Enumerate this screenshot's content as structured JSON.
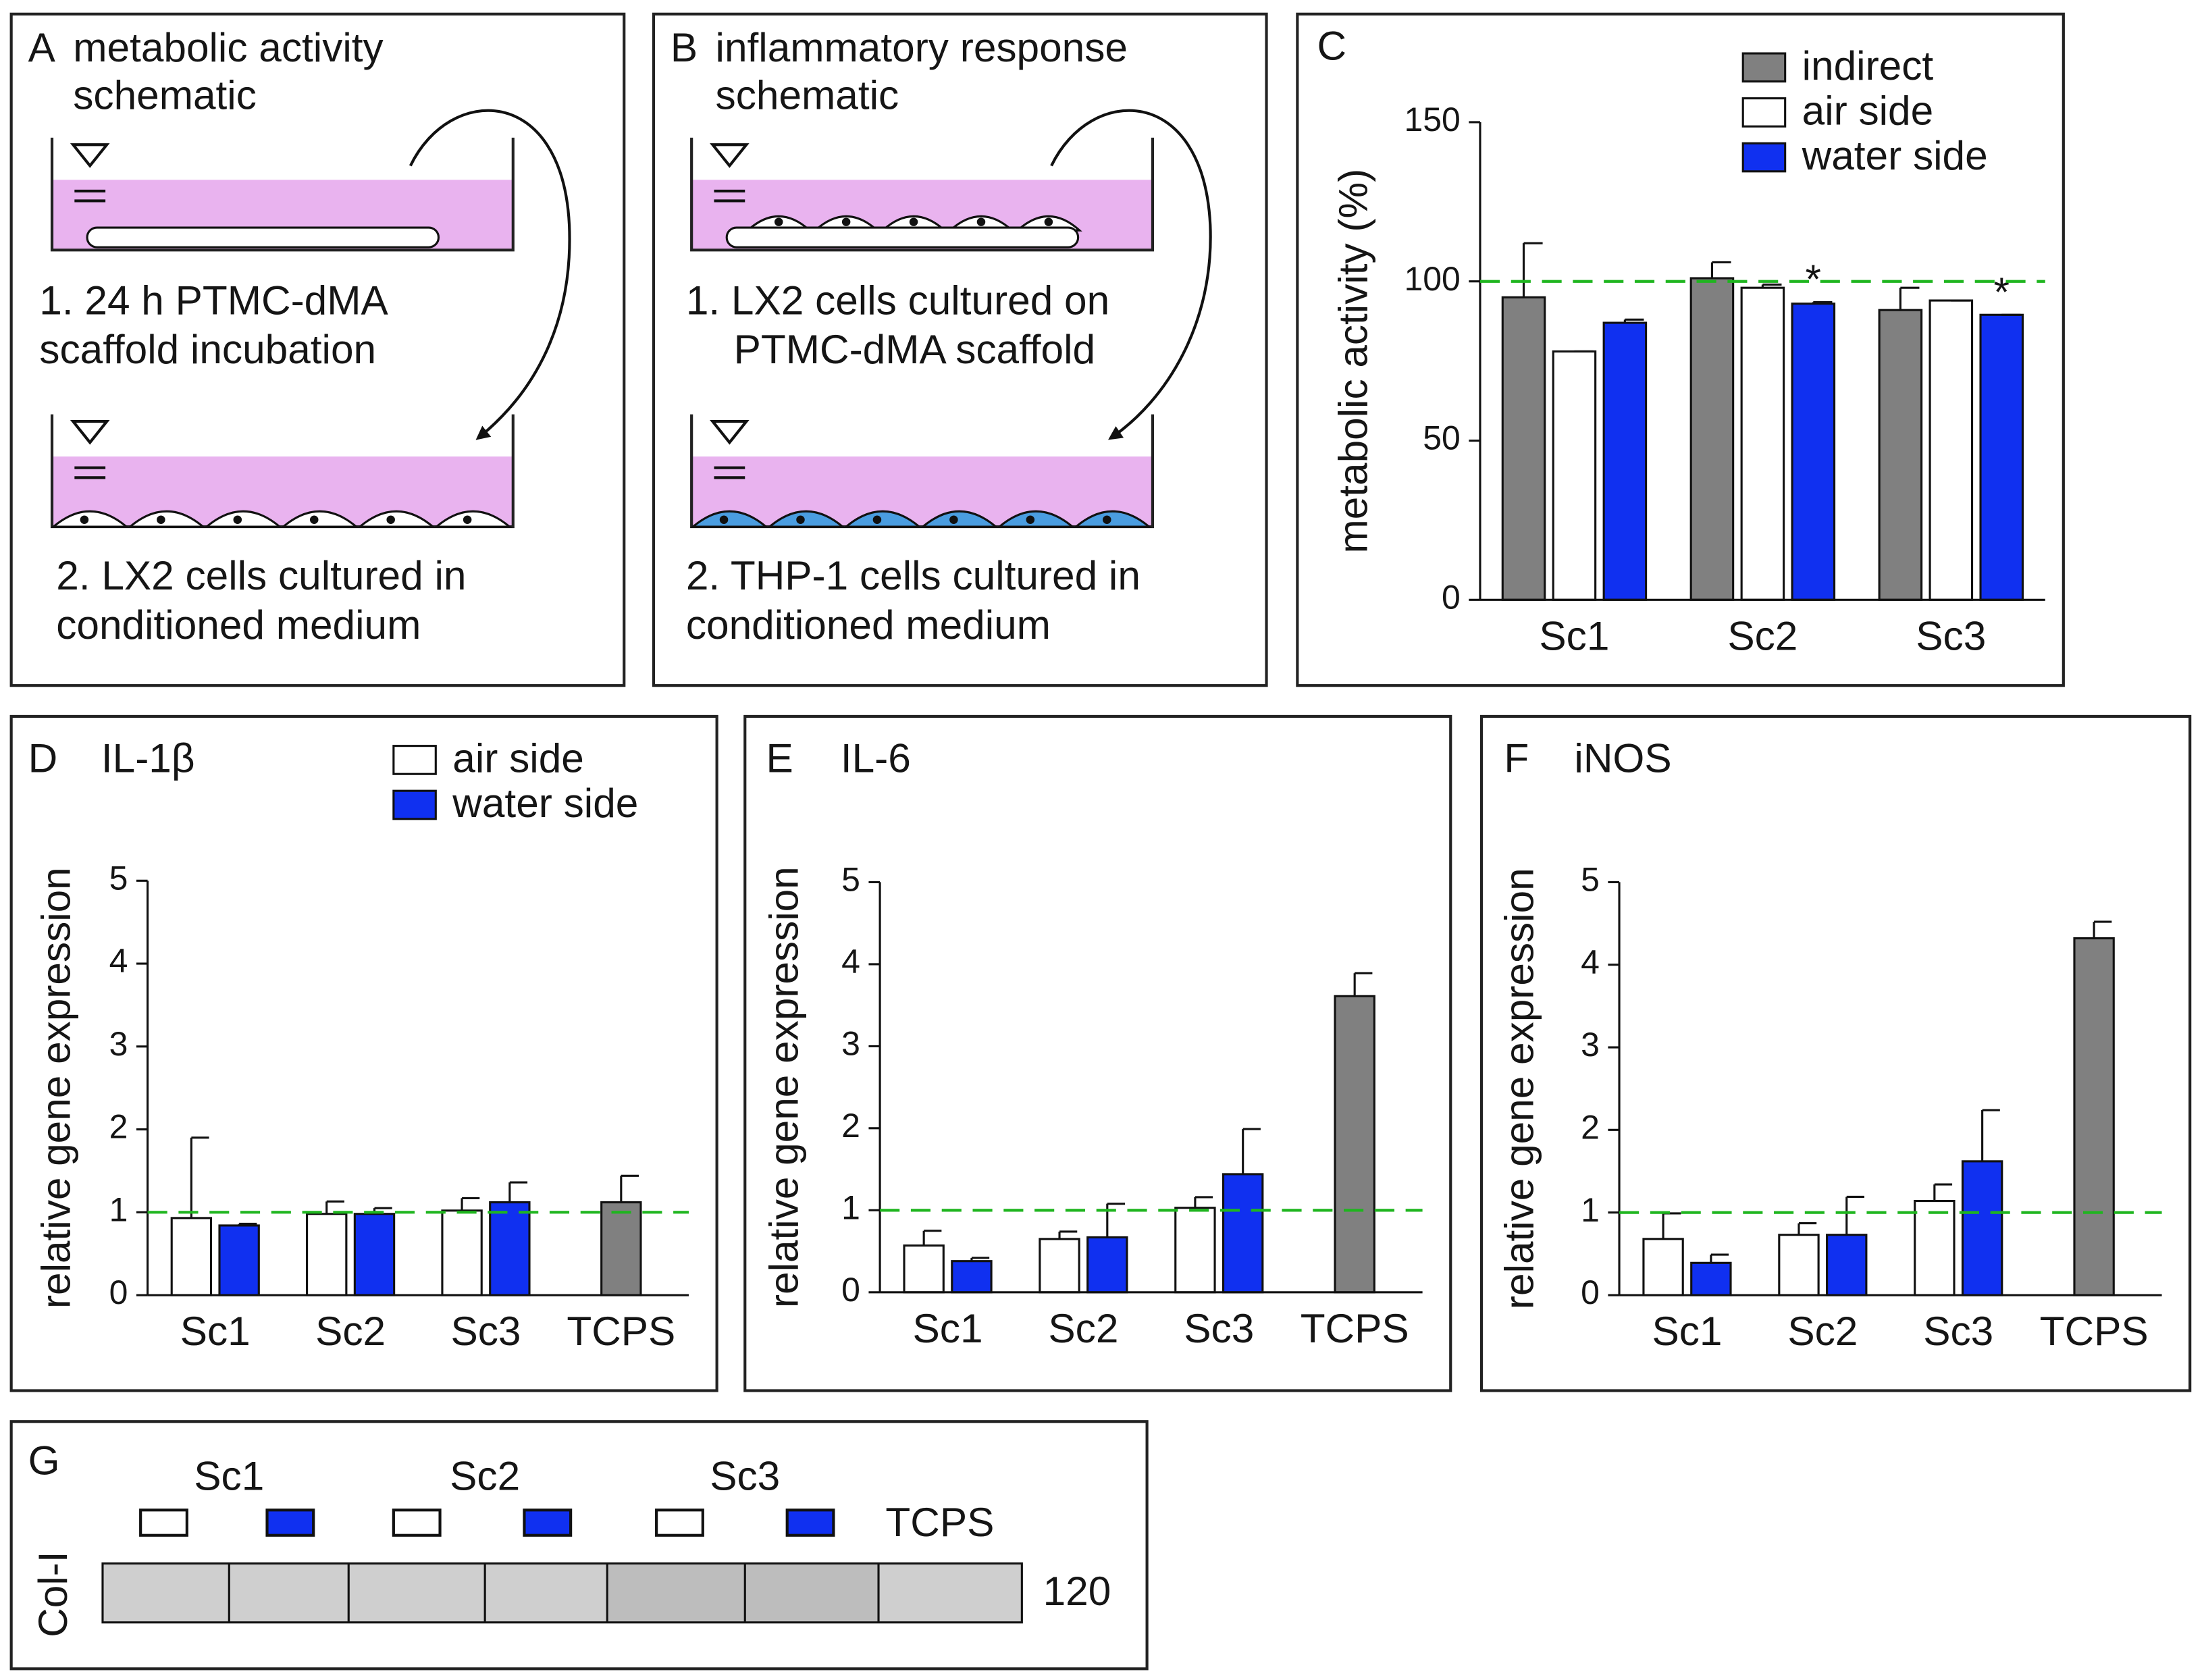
{
  "panels": {
    "A": {
      "label": "A",
      "title": [
        "metabolic activity",
        "schematic"
      ],
      "step1": [
        "1. 24 h PTMC-dMA",
        "scaffold incubation"
      ],
      "step2": [
        "2. LX2 cells cultured in",
        "conditioned medium"
      ]
    },
    "B": {
      "label": "B",
      "title": [
        "inflammatory response",
        "schematic"
      ],
      "step1": [
        "1. LX2 cells cultured on",
        "PTMC-dMA scaffold"
      ],
      "step2": [
        "2. THP-1 cells cultured in",
        "conditioned medium"
      ]
    },
    "G": {
      "label": "G",
      "row_label": "Col-I",
      "lanes": [
        "Sc1",
        "Sc2",
        "Sc3"
      ],
      "control": "TCPS",
      "marker": "120"
    }
  },
  "chart_data": [
    {
      "type": "bar",
      "label": "C",
      "ylabel": "metabolic activity (%)",
      "categories": [
        "Sc1",
        "Sc2",
        "Sc3"
      ],
      "series": [
        {
          "name": "indirect",
          "color": "#808080",
          "values": [
            95,
            101,
            91
          ],
          "errors": [
            17,
            5,
            7
          ]
        },
        {
          "name": "air side",
          "color": "#ffffff",
          "values": [
            78,
            98,
            94
          ],
          "errors": [
            0,
            1,
            0
          ]
        },
        {
          "name": "water side",
          "color": "#1030f0",
          "values": [
            87,
            93,
            89.5
          ],
          "errors": [
            1,
            0.5,
            0
          ],
          "markers": [
            null,
            "*",
            "*"
          ]
        }
      ],
      "ylim": [
        0,
        150
      ],
      "yticks": [
        0,
        50,
        100,
        150
      ],
      "reference_line": 100,
      "legend": "upper right"
    },
    {
      "type": "bar",
      "label": "D",
      "title": "IL-1β",
      "ylabel": "relative gene expression",
      "categories": [
        "Sc1",
        "Sc2",
        "Sc3",
        "TCPS"
      ],
      "series": [
        {
          "name": "air side",
          "color": "#ffffff",
          "values": [
            0.93,
            0.98,
            1.02,
            null
          ],
          "errors": [
            0.97,
            0.15,
            0.15,
            null
          ]
        },
        {
          "name": "water side",
          "color": "#1030f0",
          "values": [
            0.84,
            0.98,
            1.12,
            null
          ],
          "errors": [
            0.02,
            0.07,
            0.24,
            null
          ]
        },
        {
          "color": "#808080",
          "values": [
            null,
            null,
            null,
            1.12
          ],
          "errors": [
            null,
            null,
            null,
            0.32
          ]
        }
      ],
      "ylim": [
        0,
        5
      ],
      "yticks": [
        0,
        1,
        2,
        3,
        4,
        5
      ],
      "reference_line": 1,
      "legend": "upper right"
    },
    {
      "type": "bar",
      "label": "E",
      "title": "IL-6",
      "ylabel": "relative gene expression",
      "categories": [
        "Sc1",
        "Sc2",
        "Sc3",
        "TCPS"
      ],
      "series": [
        {
          "color": "#ffffff",
          "values": [
            0.57,
            0.65,
            1.03,
            null
          ],
          "errors": [
            0.18,
            0.09,
            0.13,
            null
          ]
        },
        {
          "color": "#1030f0",
          "values": [
            0.38,
            0.67,
            1.44,
            null
          ],
          "errors": [
            0.04,
            0.41,
            0.55,
            null
          ]
        },
        {
          "color": "#808080",
          "values": [
            null,
            null,
            null,
            3.61
          ],
          "errors": [
            null,
            null,
            null,
            0.28
          ]
        }
      ],
      "ylim": [
        0,
        5
      ],
      "yticks": [
        0,
        1,
        2,
        3,
        4,
        5
      ],
      "reference_line": 1
    },
    {
      "type": "bar",
      "label": "F",
      "title": "iNOS",
      "ylabel": "relative gene expression",
      "categories": [
        "Sc1",
        "Sc2",
        "Sc3",
        "TCPS"
      ],
      "series": [
        {
          "color": "#ffffff",
          "values": [
            0.68,
            0.73,
            1.14,
            null
          ],
          "errors": [
            0.31,
            0.14,
            0.2,
            null
          ]
        },
        {
          "color": "#1030f0",
          "values": [
            0.39,
            0.73,
            1.62,
            null
          ],
          "errors": [
            0.1,
            0.46,
            0.62,
            null
          ]
        },
        {
          "color": "#808080",
          "values": [
            null,
            null,
            null,
            4.32
          ],
          "errors": [
            null,
            null,
            null,
            0.2
          ]
        }
      ],
      "ylim": [
        0,
        5
      ],
      "yticks": [
        0,
        1,
        2,
        3,
        4,
        5
      ],
      "reference_line": 1
    }
  ]
}
